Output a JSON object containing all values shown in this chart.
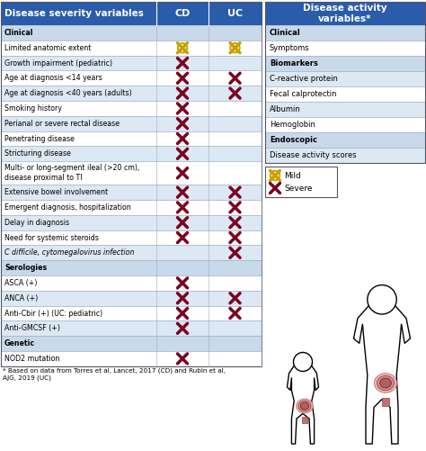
{
  "left_table": {
    "header": {
      "col0": "Disease severity variables",
      "col1": "CD",
      "col2": "UC"
    },
    "rows": [
      {
        "label": "Clinical",
        "cd": null,
        "uc": null,
        "section": true
      },
      {
        "label": "Limited anatomic extent",
        "cd": "mild",
        "uc": "mild",
        "section": false
      },
      {
        "label": "Growth impairment (pediatric)",
        "cd": "severe",
        "uc": null,
        "section": false
      },
      {
        "label": "Age at diagnosis <14 years",
        "cd": "severe",
        "uc": "severe",
        "section": false
      },
      {
        "label": "Age at diagnosis <40 years (adults)",
        "cd": "severe",
        "uc": "severe",
        "section": false
      },
      {
        "label": "Smoking history",
        "cd": "severe",
        "uc": null,
        "section": false
      },
      {
        "label": "Perianal or severe rectal disease",
        "cd": "severe",
        "uc": null,
        "section": false
      },
      {
        "label": "Penetrating disease",
        "cd": "severe",
        "uc": null,
        "section": false
      },
      {
        "label": "Stricturing disease",
        "cd": "severe",
        "uc": null,
        "section": false
      },
      {
        "label": "Multi- or long-segment ileal (>20 cm),\ndisease proximal to TI",
        "cd": "severe",
        "uc": null,
        "section": false
      },
      {
        "label": "Extensive bowel involvement",
        "cd": "severe",
        "uc": "severe",
        "section": false
      },
      {
        "label": "Emergent diagnosis, hospitalization",
        "cd": "severe",
        "uc": "severe",
        "section": false
      },
      {
        "label": "Delay in diagnosis",
        "cd": "severe",
        "uc": "severe",
        "section": false
      },
      {
        "label": "Need for systemic steroids",
        "cd": "severe",
        "uc": "severe",
        "section": false
      },
      {
        "label": "C difficile, cytomegalovirus infection",
        "cd": null,
        "uc": "severe",
        "section": false,
        "italic": true
      },
      {
        "label": "Serologies",
        "cd": null,
        "uc": null,
        "section": true
      },
      {
        "label": "ASCA (+)",
        "cd": "severe",
        "uc": null,
        "section": false
      },
      {
        "label": "ANCA (+)",
        "cd": "severe",
        "uc": "severe",
        "section": false
      },
      {
        "label": "Anti-Cbir (+) (UC: pediatric)",
        "cd": "severe",
        "uc": "severe",
        "section": false
      },
      {
        "label": "Anti-GMCSF (+)",
        "cd": "severe",
        "uc": null,
        "section": false
      },
      {
        "label": "Genetic",
        "cd": null,
        "uc": null,
        "section": true
      },
      {
        "label": "NOD2 mutation",
        "cd": "severe",
        "uc": null,
        "section": false
      }
    ]
  },
  "right_table": {
    "header": {
      "text": "Disease activity\nvariables*"
    },
    "rows": [
      {
        "label": "Clinical",
        "section": true
      },
      {
        "label": "Symptoms",
        "section": false
      },
      {
        "label": "Biomarkers",
        "section": true
      },
      {
        "label": "C-reactive protein",
        "section": false
      },
      {
        "label": "Fecal calprotectin",
        "section": false
      },
      {
        "label": "Albumin",
        "section": false
      },
      {
        "label": "Hemoglobin",
        "section": false
      },
      {
        "label": "Endoscopic",
        "section": true
      },
      {
        "label": "Disease activity scores",
        "section": false
      }
    ]
  },
  "colors": {
    "header_bg": "#2a5caa",
    "header_fg": "#ffffff",
    "section_bg": "#c8d9ea",
    "row_white": "#ffffff",
    "row_light": "#dce8f3",
    "border": "#9aabbf",
    "mild_color": "#c8a000",
    "severe_color": "#7a0020",
    "text_color": "#000000"
  },
  "footnote": "* Based on data from Torres et al, Lancet, 2017 (CD) and Rubin et al,\nAJG, 2019 (UC)"
}
